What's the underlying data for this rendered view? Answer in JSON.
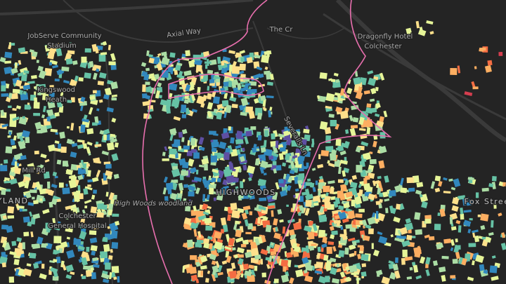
{
  "map": {
    "labels": [
      {
        "text": "JobServe Community"
      },
      {
        "text": "Stadium"
      },
      {
        "text": "Axial Way"
      },
      {
        "text": "The Cr"
      },
      {
        "text": "Dragonfly Hotel"
      },
      {
        "text": "Colchester"
      },
      {
        "text": "Kingswood"
      },
      {
        "text": "Heath"
      },
      {
        "text": "Mill Rd"
      },
      {
        "text": "Severalls Ln"
      },
      {
        "text": "HIGHWOODS"
      },
      {
        "text": "High Woods woodland"
      },
      {
        "text": "Colchester"
      },
      {
        "text": "General Hospital"
      },
      {
        "text": "YLAND"
      },
      {
        "text": "Fox Stree"
      }
    ]
  }
}
